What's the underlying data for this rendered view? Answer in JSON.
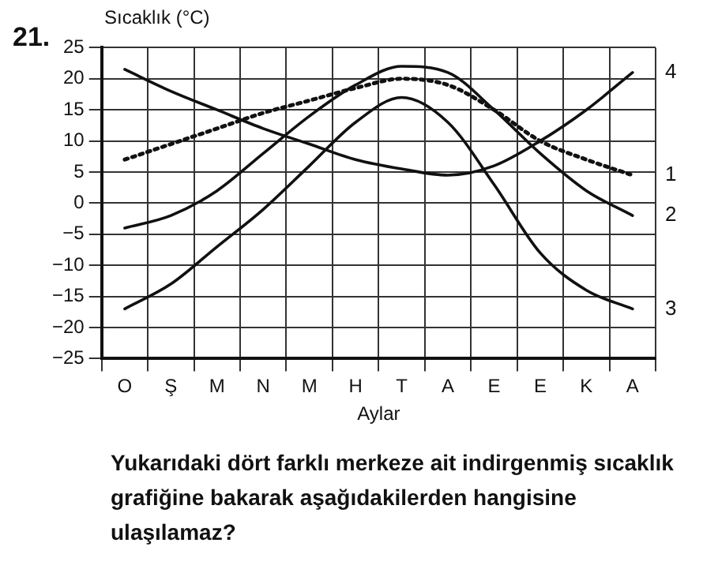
{
  "chart_data": {
    "type": "line",
    "ylabel": "Sıcaklık (°C)",
    "xlabel": "Aylar",
    "categories": [
      "O",
      "Ş",
      "M",
      "N",
      "M",
      "H",
      "T",
      "A",
      "E",
      "E",
      "K",
      "A"
    ],
    "series": [
      {
        "name": "1",
        "color": "#111111",
        "line_style": "dotted",
        "values": [
          7,
          9.5,
          12,
          14.5,
          16.5,
          18.5,
          20,
          19,
          15,
          10,
          7,
          4.5
        ]
      },
      {
        "name": "2",
        "color": "#111111",
        "line_style": "solid",
        "values": [
          -4,
          -2,
          2,
          8,
          14,
          19,
          22,
          21,
          15,
          8,
          2,
          -2
        ]
      },
      {
        "name": "3",
        "color": "#111111",
        "line_style": "solid",
        "values": [
          -17,
          -13,
          -7,
          -1,
          6,
          13,
          17,
          13,
          3,
          -8,
          -14,
          -17
        ]
      },
      {
        "name": "4",
        "color": "#111111",
        "line_style": "solid",
        "values": [
          21.5,
          18,
          15,
          12,
          9.5,
          7,
          5.5,
          4.5,
          6,
          10,
          15,
          21
        ]
      }
    ],
    "ylim": [
      -25,
      25
    ],
    "yticks": [
      -25,
      -20,
      -15,
      -10,
      -5,
      0,
      5,
      10,
      15,
      20,
      25
    ],
    "grid": true,
    "legend": false,
    "marker": "none",
    "annotations": [
      "21.",
      "Yukarıdaki dört farklı merkeze ait indirgenmiş sıcaklık grafiğine bakarak aşağıdakilerden hangisine ulaşılamaz?"
    ]
  }
}
